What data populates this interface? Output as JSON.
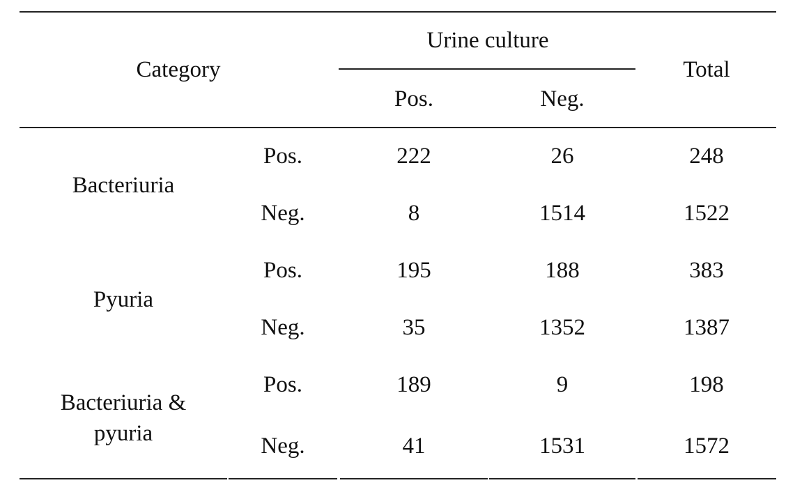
{
  "header": {
    "category": "Category",
    "urine_culture": "Urine culture",
    "pos": "Pos.",
    "neg": "Neg.",
    "total": "Total"
  },
  "groups": [
    {
      "name_line1": "Bacteriuria",
      "name_line2": "",
      "rows": [
        {
          "label": "Pos.",
          "pos": "222",
          "neg": "26",
          "total": "248"
        },
        {
          "label": "Neg.",
          "pos": "8",
          "neg": "1514",
          "total": "1522"
        }
      ]
    },
    {
      "name_line1": "Pyuria",
      "name_line2": "",
      "rows": [
        {
          "label": "Pos.",
          "pos": "195",
          "neg": "188",
          "total": "383"
        },
        {
          "label": "Neg.",
          "pos": "35",
          "neg": "1352",
          "total": "1387"
        }
      ]
    },
    {
      "name_line1": "Bacteriuria &",
      "name_line2": "pyuria",
      "rows": [
        {
          "label": "Pos.",
          "pos": "189",
          "neg": "9",
          "total": "198"
        },
        {
          "label": "Neg.",
          "pos": "41",
          "neg": "1531",
          "total": "1572"
        }
      ]
    }
  ]
}
